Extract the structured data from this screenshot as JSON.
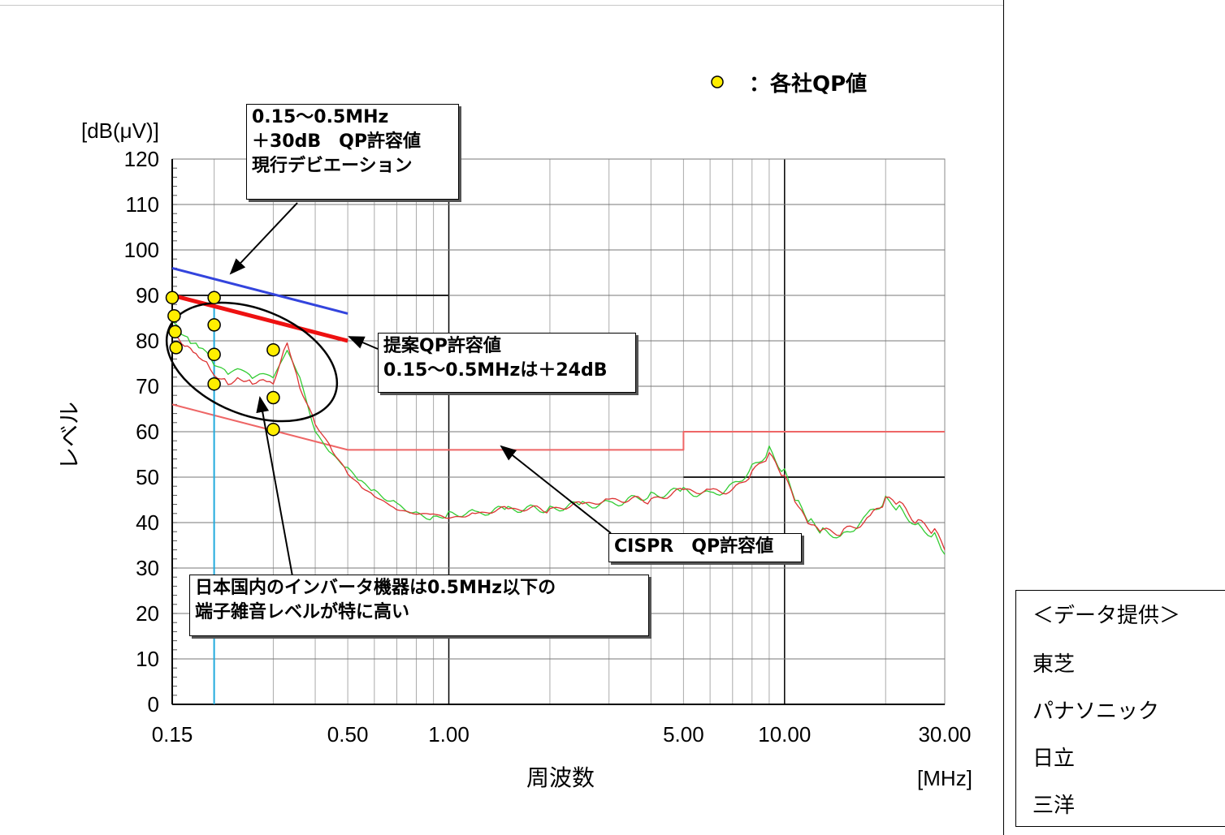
{
  "chart_data": {
    "type": "line",
    "xscale": "log",
    "xlim": [
      0.15,
      30
    ],
    "ylim": [
      0,
      120
    ],
    "grid": true,
    "xlabel": "周波数",
    "xunit": "[MHz]",
    "ylabel": "レベル",
    "yunit": "[dB(μV)]",
    "x_ticks": [
      {
        "value": 0.15,
        "label": "0.15"
      },
      {
        "value": 0.5,
        "label": "0.50"
      },
      {
        "value": 1,
        "label": "1.00"
      },
      {
        "value": 5,
        "label": "5.00"
      },
      {
        "value": 10,
        "label": "10.00"
      },
      {
        "value": 30,
        "label": "30.00"
      }
    ],
    "y_ticks": [
      0,
      10,
      20,
      30,
      40,
      50,
      60,
      70,
      80,
      90,
      100,
      110,
      120
    ],
    "series": [
      {
        "color": "#3344dd",
        "x": [
          0.15,
          0.5
        ],
        "y": [
          96,
          86
        ]
      },
      {
        "color": "#ee1111",
        "x": [
          0.15,
          0.5
        ],
        "y": [
          90,
          80
        ]
      },
      {
        "color": "#222222",
        "x": [
          0.15,
          1,
          1
        ],
        "y": [
          90,
          90,
          90
        ]
      },
      {
        "color": "#222222",
        "x": [
          5,
          30
        ],
        "y": [
          50,
          50
        ]
      },
      {
        "color": "#ee6666",
        "x": [
          0.15,
          0.5,
          5,
          5,
          30
        ],
        "y": [
          66,
          56,
          56,
          60,
          60
        ]
      },
      {
        "color": "#22aadd",
        "x": [
          0.2,
          0.2
        ],
        "y": [
          0,
          90
        ]
      },
      {
        "color": "#33cc33",
        "x": [
          0.15,
          0.16,
          0.17,
          0.18,
          0.19,
          0.2,
          0.22,
          0.24,
          0.26,
          0.28,
          0.3,
          0.33,
          0.36,
          0.4,
          0.45,
          0.5,
          0.55,
          0.6,
          0.7,
          0.8,
          0.9,
          1.0,
          1.2,
          1.5,
          2,
          2.5,
          3,
          4,
          5,
          6,
          7,
          8,
          9,
          10,
          11,
          12,
          13,
          15,
          18,
          20,
          22,
          25,
          28,
          30
        ],
        "y": [
          85,
          82,
          80,
          79,
          78,
          75,
          73,
          74,
          72,
          73,
          72,
          78,
          72,
          60,
          55,
          52,
          49,
          47,
          44,
          42,
          41,
          42,
          42,
          43,
          43,
          44,
          44,
          46,
          47,
          46,
          48,
          52,
          56,
          51,
          44,
          40,
          38,
          37,
          42,
          45,
          43,
          39,
          37,
          33
        ]
      },
      {
        "color": "#dd3333",
        "x": [
          0.15,
          0.16,
          0.17,
          0.18,
          0.19,
          0.2,
          0.22,
          0.24,
          0.26,
          0.28,
          0.3,
          0.33,
          0.36,
          0.4,
          0.45,
          0.5,
          0.55,
          0.6,
          0.7,
          0.8,
          0.9,
          1.0,
          1.2,
          1.5,
          2,
          2.5,
          3,
          4,
          5,
          6,
          7,
          8,
          9,
          10,
          11,
          12,
          13,
          15,
          18,
          20,
          22,
          25,
          28,
          30
        ],
        "y": [
          83,
          80,
          79,
          77,
          76,
          73,
          71,
          72,
          71,
          72,
          71,
          80,
          70,
          62,
          56,
          51,
          48,
          46,
          43,
          42,
          42,
          41,
          42,
          43,
          43,
          44,
          45,
          45,
          47,
          47,
          47,
          51,
          55,
          50,
          43,
          39,
          38,
          38,
          41,
          45,
          44,
          40,
          38,
          34
        ]
      }
    ],
    "qp_points": [
      {
        "x": 0.15,
        "y": 89.5
      },
      {
        "x": 0.152,
        "y": 85.5
      },
      {
        "x": 0.153,
        "y": 82
      },
      {
        "x": 0.154,
        "y": 78.5
      },
      {
        "x": 0.2,
        "y": 89.5
      },
      {
        "x": 0.2,
        "y": 83.5
      },
      {
        "x": 0.2,
        "y": 77
      },
      {
        "x": 0.2,
        "y": 70.5
      },
      {
        "x": 0.3,
        "y": 78
      },
      {
        "x": 0.3,
        "y": 67.5
      },
      {
        "x": 0.3,
        "y": 60.5
      }
    ],
    "legend": {
      "marker_label": "：各社QP値"
    },
    "annotations": {
      "current": [
        "0.15～0.5MHz",
        "＋30dB　QP許容値",
        "現行デビエーション"
      ],
      "proposed": [
        "提案QP許容値",
        "0.15～0.5MHzは＋24dB"
      ],
      "cispr": [
        "CISPR　QP許容値"
      ],
      "japan": [
        "日本国内のインバータ機器は0.5MHz以下の",
        "端子雑音レベルが特に高い"
      ]
    }
  },
  "providers": {
    "title": "＜データ提供＞",
    "items": [
      "東芝",
      "パナソニック",
      "日立",
      "三洋"
    ]
  },
  "colors": {
    "qp_fill": "#ffee00",
    "grid": "#aaaaaa",
    "grid_major": "#000000"
  }
}
